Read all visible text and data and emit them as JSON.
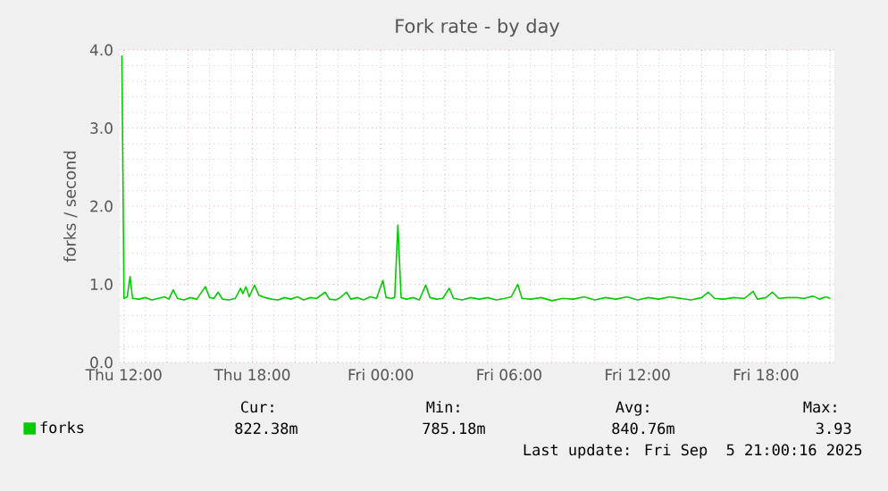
{
  "chart_data": {
    "type": "line",
    "title": "Fork rate - by day",
    "ylabel": "forks / second",
    "series": [
      {
        "name": "forks",
        "color": "#00cc00",
        "x": [
          "2025-09-04T11:54",
          "2025-09-04T12:00",
          "2025-09-04T12:09",
          "2025-09-04T12:17",
          "2025-09-04T12:24",
          "2025-09-04T12:42",
          "2025-09-04T13:00",
          "2025-09-04T13:18",
          "2025-09-04T13:36",
          "2025-09-04T13:54",
          "2025-09-04T14:06",
          "2025-09-04T14:18",
          "2025-09-04T14:30",
          "2025-09-04T14:48",
          "2025-09-04T15:06",
          "2025-09-04T15:24",
          "2025-09-04T15:48",
          "2025-09-04T16:00",
          "2025-09-04T16:12",
          "2025-09-04T16:24",
          "2025-09-04T16:36",
          "2025-09-04T16:54",
          "2025-09-04T17:12",
          "2025-09-04T17:27",
          "2025-09-04T17:33",
          "2025-09-04T17:42",
          "2025-09-04T17:51",
          "2025-09-04T18:06",
          "2025-09-04T18:18",
          "2025-09-04T18:36",
          "2025-09-04T18:54",
          "2025-09-04T19:12",
          "2025-09-04T19:30",
          "2025-09-04T19:48",
          "2025-09-04T20:06",
          "2025-09-04T20:24",
          "2025-09-04T20:42",
          "2025-09-04T21:00",
          "2025-09-04T21:24",
          "2025-09-04T21:36",
          "2025-09-04T21:54",
          "2025-09-04T22:06",
          "2025-09-04T22:24",
          "2025-09-04T22:36",
          "2025-09-04T22:54",
          "2025-09-04T23:12",
          "2025-09-04T23:30",
          "2025-09-04T23:48",
          "2025-09-05T00:06",
          "2025-09-05T00:15",
          "2025-09-05T00:30",
          "2025-09-05T00:39",
          "2025-09-05T00:48",
          "2025-09-05T00:57",
          "2025-09-05T01:12",
          "2025-09-05T01:30",
          "2025-09-05T01:48",
          "2025-09-05T02:06",
          "2025-09-05T02:18",
          "2025-09-05T02:36",
          "2025-09-05T02:54",
          "2025-09-05T03:12",
          "2025-09-05T03:24",
          "2025-09-05T03:48",
          "2025-09-05T04:12",
          "2025-09-05T04:36",
          "2025-09-05T05:00",
          "2025-09-05T05:24",
          "2025-09-05T05:48",
          "2025-09-05T06:06",
          "2025-09-05T06:24",
          "2025-09-05T06:36",
          "2025-09-05T07:00",
          "2025-09-05T07:30",
          "2025-09-05T08:00",
          "2025-09-05T08:30",
          "2025-09-05T09:00",
          "2025-09-05T09:30",
          "2025-09-05T10:00",
          "2025-09-05T10:30",
          "2025-09-05T11:00",
          "2025-09-05T11:30",
          "2025-09-05T12:00",
          "2025-09-05T12:30",
          "2025-09-05T13:00",
          "2025-09-05T13:30",
          "2025-09-05T14:00",
          "2025-09-05T14:30",
          "2025-09-05T15:00",
          "2025-09-05T15:18",
          "2025-09-05T15:36",
          "2025-09-05T16:00",
          "2025-09-05T16:30",
          "2025-09-05T17:00",
          "2025-09-05T17:24",
          "2025-09-05T17:36",
          "2025-09-05T18:00",
          "2025-09-05T18:18",
          "2025-09-05T18:36",
          "2025-09-05T19:00",
          "2025-09-05T19:24",
          "2025-09-05T19:48",
          "2025-09-05T20:12",
          "2025-09-05T20:30",
          "2025-09-05T20:48",
          "2025-09-05T21:00"
        ],
        "values": [
          3.93,
          0.82,
          0.84,
          1.1,
          0.82,
          0.81,
          0.83,
          0.8,
          0.82,
          0.84,
          0.81,
          0.93,
          0.82,
          0.8,
          0.83,
          0.81,
          0.97,
          0.83,
          0.82,
          0.9,
          0.81,
          0.8,
          0.82,
          0.95,
          0.88,
          0.97,
          0.84,
          0.99,
          0.86,
          0.83,
          0.81,
          0.8,
          0.83,
          0.81,
          0.84,
          0.8,
          0.83,
          0.82,
          0.9,
          0.81,
          0.8,
          0.83,
          0.9,
          0.81,
          0.83,
          0.8,
          0.84,
          0.82,
          1.05,
          0.83,
          0.82,
          0.83,
          1.76,
          0.83,
          0.81,
          0.83,
          0.8,
          0.99,
          0.83,
          0.81,
          0.82,
          0.95,
          0.82,
          0.8,
          0.83,
          0.81,
          0.83,
          0.8,
          0.82,
          0.84,
          1.0,
          0.82,
          0.81,
          0.83,
          0.79,
          0.82,
          0.81,
          0.84,
          0.8,
          0.83,
          0.81,
          0.84,
          0.8,
          0.83,
          0.81,
          0.84,
          0.82,
          0.8,
          0.83,
          0.9,
          0.82,
          0.81,
          0.83,
          0.82,
          0.91,
          0.81,
          0.83,
          0.9,
          0.82,
          0.83,
          0.83,
          0.82,
          0.85,
          0.81,
          0.84,
          0.82
        ]
      }
    ],
    "xlim": [
      "2025-09-04T11:48",
      "2025-09-05T21:12"
    ],
    "ylim": [
      0,
      4
    ],
    "xticks": [
      {
        "value": "2025-09-04T12:00",
        "label": "Thu 12:00"
      },
      {
        "value": "2025-09-04T15:00",
        "label": null
      },
      {
        "value": "2025-09-04T18:00",
        "label": "Thu 18:00"
      },
      {
        "value": "2025-09-04T21:00",
        "label": null
      },
      {
        "value": "2025-09-05T00:00",
        "label": "Fri 00:00"
      },
      {
        "value": "2025-09-05T03:00",
        "label": null
      },
      {
        "value": "2025-09-05T06:00",
        "label": "Fri 06:00"
      },
      {
        "value": "2025-09-05T09:00",
        "label": null
      },
      {
        "value": "2025-09-05T12:00",
        "label": "Fri 12:00"
      },
      {
        "value": "2025-09-05T15:00",
        "label": null
      },
      {
        "value": "2025-09-05T18:00",
        "label": "Fri 18:00"
      },
      {
        "value": "2025-09-05T21:00",
        "label": null
      }
    ],
    "yticks": [
      {
        "value": 0,
        "label": "0.0"
      },
      {
        "value": 1,
        "label": "1.0"
      },
      {
        "value": 2,
        "label": "2.0"
      },
      {
        "value": 3,
        "label": "3.0"
      },
      {
        "value": 4,
        "label": "4.0"
      }
    ],
    "grid": true,
    "legend": "bottom left",
    "annotations": [
      "Cur:",
      "Min:",
      "Avg:",
      "Max:",
      "822.38m",
      "785.18m",
      "840.76m",
      "3.93",
      "Last update: Fri Sep  5 21:00:16 2025"
    ]
  }
}
